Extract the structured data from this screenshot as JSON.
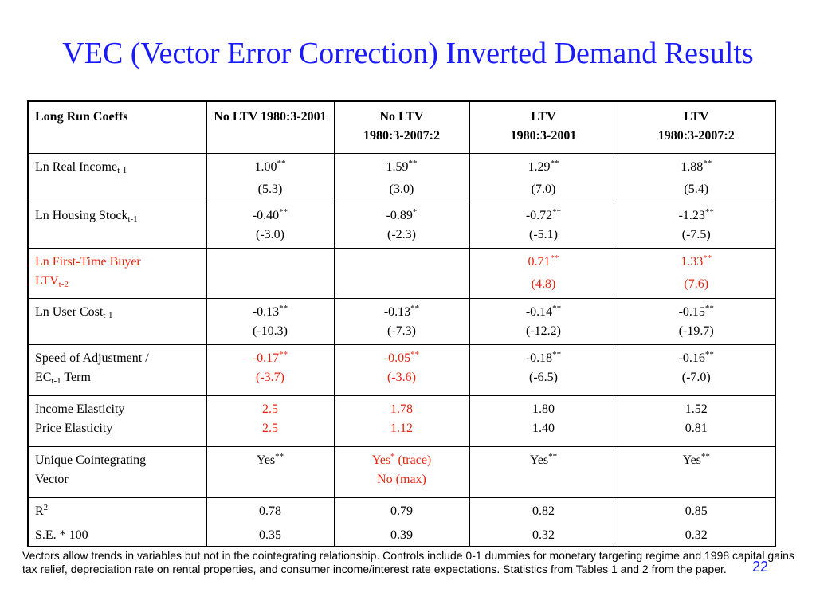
{
  "slide": {
    "title": "VEC (Vector Error Correction) Inverted Demand Results",
    "page_number": "22",
    "footnote": "Vectors allow trends in variables but not in the cointegrating relationship. Controls include 0-1 dummies for monetary targeting regime and 1998 capital gains tax relief, depreciation rate on rental properties, and consumer income/interest rate expectations. Statistics from Tables 1 and 2 from the paper."
  },
  "colors": {
    "title": "#1a1aff",
    "highlight": "#e8230c",
    "text": "#000000"
  },
  "table": {
    "headers": [
      "Long Run Coeffs",
      "No LTV 1980:3-2001",
      "No LTV",
      "1980:3-2007:2",
      "LTV",
      "1980:3-2001",
      "LTV",
      "1980:3-2007:2"
    ],
    "rows": {
      "real_income": {
        "label": "Ln Real Income",
        "sub": "t-1",
        "c1": {
          "v": "1.00",
          "s": "**",
          "t": "(5.3)"
        },
        "c2": {
          "v": "1.59",
          "s": "**",
          "t": "(3.0)"
        },
        "c3": {
          "v": "1.29",
          "s": "**",
          "t": "(7.0)"
        },
        "c4": {
          "v": "1.88",
          "s": "**",
          "t": "(5.4)"
        }
      },
      "housing_stock": {
        "label": "Ln Housing Stock",
        "sub": "t-1",
        "c1": {
          "v": "-0.40",
          "s": "**",
          "t": "(-3.0)"
        },
        "c2": {
          "v": "-0.89",
          "s": "*",
          "t": "(-2.3)"
        },
        "c3": {
          "v": "-0.72",
          "s": "**",
          "t": "(-5.1)"
        },
        "c4": {
          "v": "-1.23",
          "s": "**",
          "t": "(-7.5)"
        }
      },
      "ftb_ltv": {
        "label1": "Ln First-Time Buyer",
        "label2": "LTV",
        "sub": "t-2",
        "c3": {
          "v": "0.71",
          "s": "**",
          "t": "(4.8)"
        },
        "c4": {
          "v": "1.33",
          "s": "**",
          "t": "(7.6)"
        }
      },
      "user_cost": {
        "label": "Ln User Cost",
        "sub": "t-1",
        "c1": {
          "v": "-0.13",
          "s": "**",
          "t": "(-10.3)"
        },
        "c2": {
          "v": "-0.13",
          "s": "**",
          "t": "(-7.3)"
        },
        "c3": {
          "v": "-0.14",
          "s": "**",
          "t": "(-12.2)"
        },
        "c4": {
          "v": "-0.15",
          "s": "**",
          "t": "(-19.7)"
        }
      },
      "speed": {
        "label1": "Speed of Adjustment /",
        "label2a": "EC",
        "sub": "t-1",
        "label2b": " Term",
        "c1": {
          "v": "-0.17",
          "s": "**",
          "t": "(-3.7)"
        },
        "c2": {
          "v": "-0.05",
          "s": "**",
          "t": "(-3.6)"
        },
        "c3": {
          "v": "-0.18",
          "s": "**",
          "t": "(-6.5)"
        },
        "c4": {
          "v": "-0.16",
          "s": "**",
          "t": "(-7.0)"
        }
      },
      "elasticity": {
        "label1": "Income Elasticity",
        "label2": "Price Elasticity",
        "c1": {
          "a": "2.5",
          "b": "2.5"
        },
        "c2": {
          "a": "1.78",
          "b": "1.12"
        },
        "c3": {
          "a": "1.80",
          "b": "1.40"
        },
        "c4": {
          "a": "1.52",
          "b": "0.81"
        }
      },
      "cointegrating": {
        "label1": "Unique Cointegrating",
        "label2": "Vector",
        "c1": {
          "v": "Yes",
          "s": "**"
        },
        "c2": {
          "v": "Yes",
          "s": "*",
          "after": " (trace)",
          "line2": "No (max)"
        },
        "c3": {
          "v": "Yes",
          "s": "**"
        },
        "c4": {
          "v": "Yes",
          "s": "**"
        }
      },
      "fit": {
        "label1": "R",
        "sup": "2",
        "label2": "S.E. * 100",
        "c1": {
          "a": "0.78",
          "b": "0.35"
        },
        "c2": {
          "a": "0.79",
          "b": "0.39"
        },
        "c3": {
          "a": "0.82",
          "b": "0.32"
        },
        "c4": {
          "a": "0.85",
          "b": "0.32"
        }
      }
    }
  }
}
